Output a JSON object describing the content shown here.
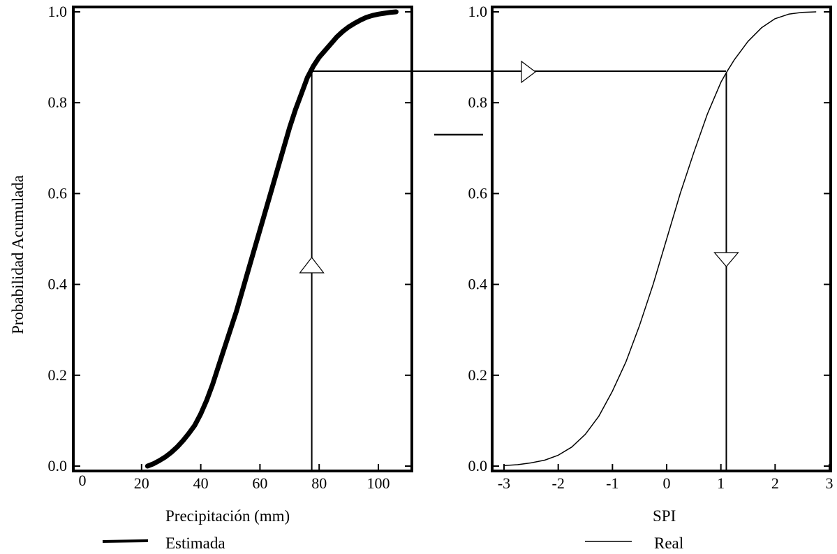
{
  "chart_data": [
    {
      "type": "line",
      "xlabel": "Precipitación (mm)",
      "ylabel": "Probabilidad Acumulada",
      "xlim": [
        0,
        110
      ],
      "ylim": [
        0,
        1
      ],
      "x_ticks": [
        "0",
        "20",
        "40",
        "60",
        "80",
        "100"
      ],
      "y_ticks": [
        "0.0",
        "0.2",
        "0.4",
        "0.6",
        "0.8",
        "1.0"
      ],
      "series": [
        {
          "name": "Estimada",
          "color": "#000000",
          "x": [
            22,
            24,
            26,
            28,
            30,
            32,
            34,
            36,
            38,
            40,
            42,
            44,
            46,
            48,
            50,
            52,
            54,
            56,
            58,
            60,
            62,
            64,
            66,
            68,
            70,
            72,
            74,
            76,
            78,
            80,
            82,
            84,
            86,
            88,
            90,
            92,
            94,
            96,
            98,
            100,
            102,
            104,
            106
          ],
          "y": [
            0.0,
            0.005,
            0.012,
            0.02,
            0.03,
            0.042,
            0.056,
            0.072,
            0.09,
            0.115,
            0.145,
            0.18,
            0.22,
            0.26,
            0.3,
            0.34,
            0.385,
            0.43,
            0.475,
            0.52,
            0.565,
            0.61,
            0.655,
            0.7,
            0.745,
            0.785,
            0.82,
            0.855,
            0.88,
            0.9,
            0.915,
            0.93,
            0.945,
            0.957,
            0.967,
            0.975,
            0.982,
            0.988,
            0.992,
            0.995,
            0.997,
            0.999,
            1.0
          ]
        }
      ],
      "guide": {
        "x": 77.5,
        "y": 0.866
      }
    },
    {
      "type": "line",
      "xlabel": "SPI",
      "ylabel": "",
      "xlim": [
        -3.3,
        3
      ],
      "ylim": [
        0,
        1
      ],
      "x_ticks": [
        "-3",
        "-2",
        "-1",
        "0",
        "1",
        "2",
        "3"
      ],
      "y_ticks": [
        "0.0",
        "0.2",
        "0.4",
        "0.6",
        "0.8",
        "1.0"
      ],
      "series": [
        {
          "name": "Real",
          "color": "#000000",
          "x": [
            -3.0,
            -2.75,
            -2.5,
            -2.25,
            -2.0,
            -1.75,
            -1.5,
            -1.25,
            -1.0,
            -0.75,
            -0.5,
            -0.25,
            0.0,
            0.25,
            0.5,
            0.75,
            1.0,
            1.1,
            1.25,
            1.5,
            1.75,
            2.0,
            2.25,
            2.5,
            2.75
          ],
          "y": [
            0.001,
            0.003,
            0.007,
            0.013,
            0.024,
            0.042,
            0.07,
            0.11,
            0.165,
            0.23,
            0.31,
            0.4,
            0.5,
            0.6,
            0.69,
            0.775,
            0.845,
            0.866,
            0.895,
            0.935,
            0.965,
            0.985,
            0.995,
            0.999,
            1.0
          ]
        }
      ],
      "guide": {
        "x": 1.1,
        "y": 0.866
      }
    }
  ]
}
